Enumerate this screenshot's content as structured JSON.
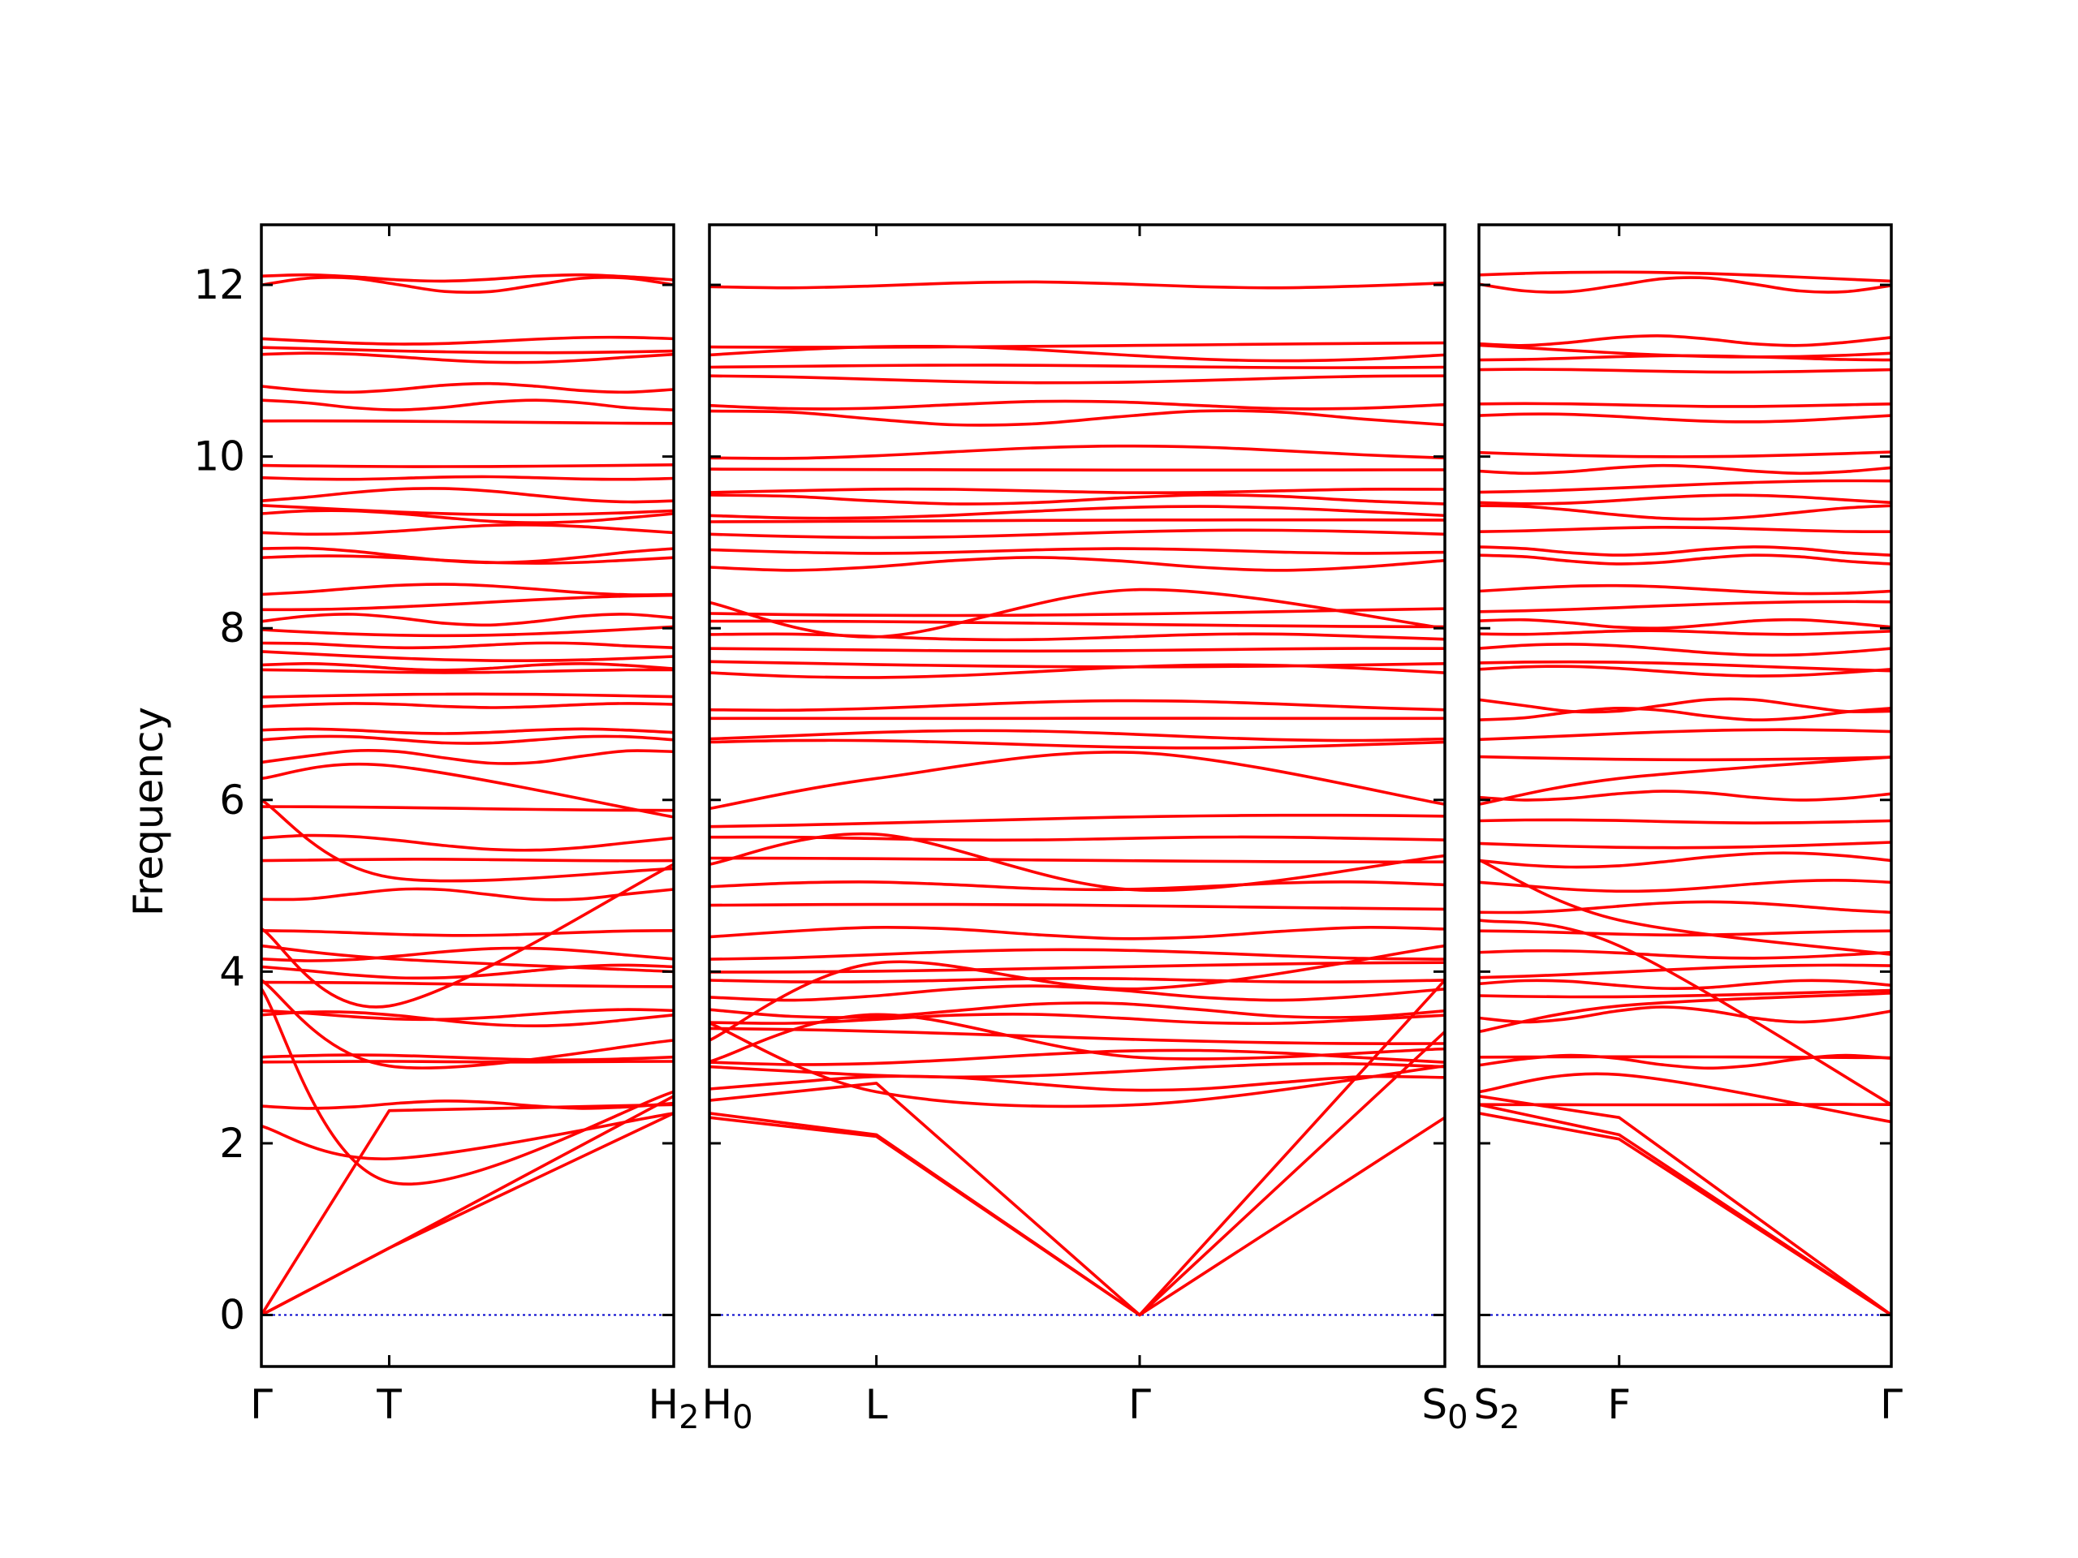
{
  "chart_data": {
    "type": "line",
    "ylabel": "Frequency",
    "ylim": [
      -0.6,
      12.7
    ],
    "yticks": [
      0,
      2,
      4,
      6,
      8,
      10,
      12
    ],
    "zero_line": 0,
    "colors": {
      "bands": "#ff0000",
      "zero_line": "#0000cc",
      "axes": "#000000"
    },
    "grid": false,
    "x_label_text": [
      "Γ",
      "T",
      "H",
      "2",
      "H",
      "0",
      "L",
      "Γ",
      "S",
      "0",
      "S",
      "2",
      "F",
      "Γ"
    ],
    "panels": [
      {
        "path": [
          "Γ",
          "T",
          "H2"
        ],
        "x": [
          0,
          0.31,
          1
        ],
        "xtick_labels": [
          "Γ",
          "T",
          "H₂"
        ],
        "flat_bands": [
          2.45,
          2.95,
          3.0,
          3.45,
          3.5,
          3.85,
          4.0,
          4.2,
          4.45,
          4.9,
          5.3,
          5.5,
          5.9,
          6.5,
          6.7,
          6.8,
          7.1,
          7.2,
          7.5,
          7.55,
          7.7,
          7.8,
          8.0,
          8.1,
          8.3,
          8.45,
          8.8,
          8.85,
          9.15,
          9.3,
          9.4,
          9.55,
          9.75,
          9.9,
          10.4,
          10.6,
          10.8,
          11.15,
          11.25,
          11.35,
          12.0,
          12.08
        ],
        "acoustic": [
          {
            "values": [
              0,
              2.38,
              2.45
            ]
          },
          {
            "values": [
              0,
              0.78,
              2.35
            ]
          },
          {
            "values": [
              0,
              0.78,
              2.55
            ]
          }
        ],
        "dispersive": [
          {
            "values": [
              2.2,
              1.82,
              2.35
            ]
          },
          {
            "values": [
              3.9,
              2.9,
              3.2
            ]
          },
          {
            "values": [
              3.8,
              1.55,
              2.6
            ]
          },
          {
            "values": [
              4.5,
              3.6,
              5.25
            ]
          },
          {
            "values": [
              6.25,
              6.4,
              5.8
            ]
          },
          {
            "values": [
              6.0,
              5.1,
              5.2
            ]
          },
          {
            "values": [
              4.3,
              4.15,
              4.0
            ]
          }
        ]
      },
      {
        "path": [
          "H0",
          "L",
          "Γ",
          "S0"
        ],
        "x": [
          0,
          0.227,
          0.585,
          1
        ],
        "xtick_labels": [
          "H₀",
          "L",
          "Γ",
          "S₀"
        ],
        "flat_bands": [
          2.7,
          2.85,
          3.0,
          3.25,
          3.45,
          3.55,
          3.75,
          3.9,
          4.05,
          4.2,
          4.45,
          4.75,
          5.0,
          5.3,
          5.55,
          5.75,
          6.65,
          6.75,
          6.95,
          7.1,
          7.5,
          7.6,
          7.75,
          7.9,
          8.05,
          8.2,
          8.75,
          8.9,
          9.1,
          9.25,
          9.35,
          9.5,
          9.6,
          9.85,
          10.05,
          10.45,
          10.6,
          10.9,
          11.05,
          11.2,
          11.3,
          12.0
        ],
        "acoustic": [
          {
            "values": [
              2.3,
              2.08,
              0,
              2.3
            ]
          },
          {
            "values": [
              2.35,
              2.1,
              0,
              3.3
            ]
          },
          {
            "values": [
              2.5,
              2.7,
              0,
              3.9
            ]
          }
        ],
        "dispersive": [
          {
            "values": [
              5.9,
              6.25,
              6.55,
              5.95
            ]
          },
          {
            "values": [
              5.25,
              5.6,
              4.95,
              5.35
            ]
          },
          {
            "values": [
              3.4,
              2.6,
              2.45,
              2.9
            ]
          },
          {
            "values": [
              2.95,
              3.5,
              3.0,
              3.1
            ]
          },
          {
            "values": [
              3.2,
              4.1,
              3.8,
              4.3
            ]
          },
          {
            "values": [
              8.3,
              7.9,
              8.45,
              8.0
            ]
          }
        ]
      },
      {
        "path": [
          "S2",
          "F",
          "Γ"
        ],
        "x": [
          0,
          0.34,
          1
        ],
        "xtick_labels": [
          "S₂",
          "F",
          "Γ"
        ],
        "flat_bands": [
          2.45,
          2.95,
          3.0,
          3.5,
          3.75,
          3.85,
          4.0,
          4.2,
          4.45,
          4.75,
          5.0,
          5.3,
          5.5,
          5.75,
          6.05,
          6.5,
          6.75,
          7.0,
          7.1,
          7.5,
          7.55,
          7.75,
          7.95,
          8.05,
          8.25,
          8.45,
          8.8,
          8.9,
          9.15,
          9.35,
          9.5,
          9.65,
          9.85,
          10.05,
          10.45,
          10.6,
          11.0,
          11.15,
          11.25,
          11.35,
          12.0,
          12.08
        ],
        "acoustic": [
          {
            "values": [
              2.35,
              2.05,
              0
            ]
          },
          {
            "values": [
              2.45,
              2.1,
              0
            ]
          },
          {
            "values": [
              2.55,
              2.3,
              0
            ]
          }
        ],
        "dispersive": [
          {
            "values": [
              5.95,
              6.25,
              6.5
            ]
          },
          {
            "values": [
              5.3,
              4.6,
              4.2
            ]
          },
          {
            "values": [
              4.6,
              4.3,
              2.45
            ]
          },
          {
            "values": [
              3.3,
              3.6,
              3.75
            ]
          },
          {
            "values": [
              2.6,
              2.8,
              2.25
            ]
          }
        ]
      }
    ]
  }
}
